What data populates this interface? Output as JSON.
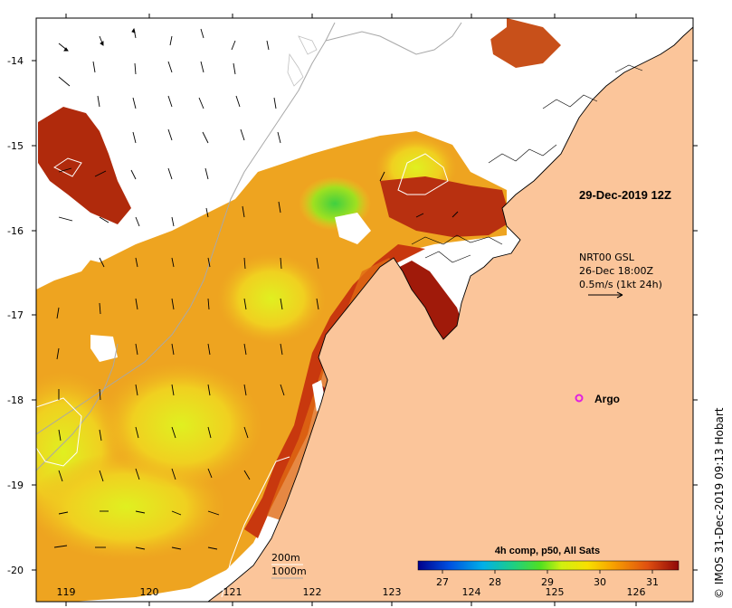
{
  "map": {
    "lon_ticks": [
      "119",
      "120",
      "121",
      "122",
      "123",
      "124",
      "125",
      "126"
    ],
    "lat_ticks": [
      "-14",
      "-15",
      "-16",
      "-17",
      "-18",
      "-19",
      "-20"
    ],
    "timestamp": "29-Dec-2019 12Z",
    "current_source": {
      "line1": "NRT00 GSL",
      "line2": "26-Dec 18:00Z",
      "line3": "0.5m/s (1kt 24h)"
    },
    "argo_label": "Argo",
    "depth_contours": {
      "c200": "200m",
      "c1000": "1000m"
    },
    "colorbar": {
      "title": "4h comp, p50, All Sats",
      "ticks": [
        "27",
        "28",
        "29",
        "30",
        "31"
      ]
    },
    "credit": "© IMOS 31-Dec-2019 09:13 Hobart",
    "colors": {
      "land": "#fbc59a",
      "sst_warm": "#e8a020",
      "sst_hot": "#a0180a",
      "sst_cool": "#d8e020",
      "argo": "#e020e0"
    }
  }
}
